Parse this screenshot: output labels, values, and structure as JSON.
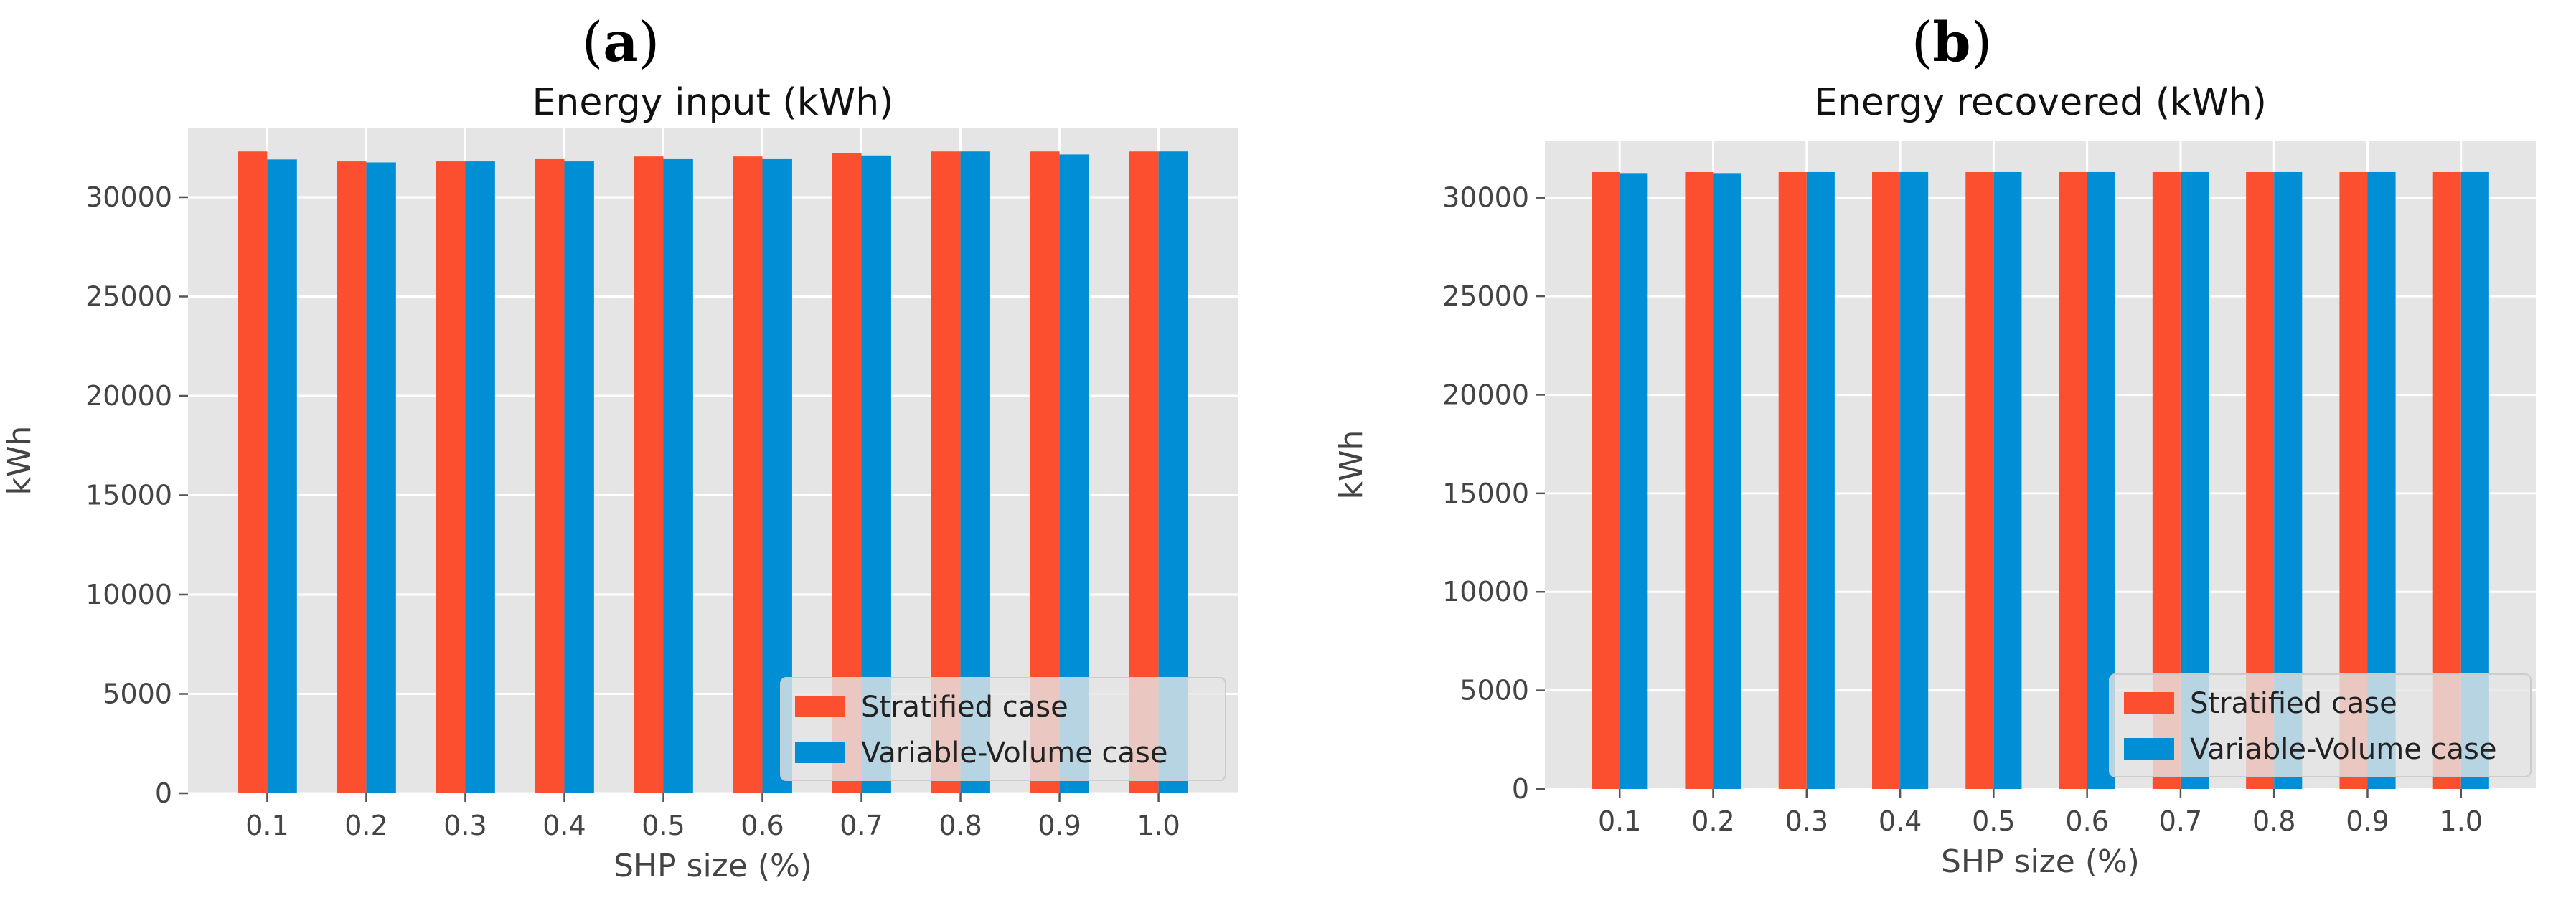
{
  "colors": {
    "stratified": "#fc4f30",
    "variable_volume": "#008fd5",
    "plot_background": "#e5e5e5",
    "grid": "#ffffff"
  },
  "chart_data": [
    {
      "panel_prefix": "(",
      "panel_letter": "a",
      "panel_suffix": ")",
      "type": "bar",
      "title": "Energy input (kWh)",
      "xlabel": "SHP size (%)",
      "ylabel": "kWh",
      "ylim": [
        0,
        33500
      ],
      "yticks": [
        0,
        5000,
        10000,
        15000,
        20000,
        25000,
        30000
      ],
      "ytick_labels": [
        "0",
        "5000",
        "10000",
        "15000",
        "20000",
        "25000",
        "30000"
      ],
      "categories": [
        "0.1",
        "0.2",
        "0.3",
        "0.4",
        "0.5",
        "0.6",
        "0.7",
        "0.8",
        "0.9",
        "1.0"
      ],
      "series": [
        {
          "name": "Stratified case",
          "color_key": "stratified",
          "values": [
            32300,
            31800,
            31800,
            31950,
            32050,
            32050,
            32200,
            32300,
            32300,
            32300
          ]
        },
        {
          "name": "Variable-Volume case",
          "color_key": "variable_volume",
          "values": [
            31900,
            31750,
            31800,
            31800,
            31950,
            31950,
            32100,
            32300,
            32150,
            32300
          ]
        }
      ],
      "legend": "lower-right",
      "grid": true
    },
    {
      "panel_prefix": "(",
      "panel_letter": "b",
      "panel_suffix": ")",
      "type": "bar",
      "title": "Energy recovered (kWh)",
      "xlabel": "SHP size (%)",
      "ylabel": "kWh",
      "ylim": [
        0,
        32900
      ],
      "yticks": [
        0,
        5000,
        10000,
        15000,
        20000,
        25000,
        30000
      ],
      "ytick_labels": [
        "0",
        "5000",
        "10000",
        "15000",
        "20000",
        "25000",
        "30000"
      ],
      "categories": [
        "0.1",
        "0.2",
        "0.3",
        "0.4",
        "0.5",
        "0.6",
        "0.7",
        "0.8",
        "0.9",
        "1.0"
      ],
      "series": [
        {
          "name": "Stratified case",
          "color_key": "stratified",
          "values": [
            31300,
            31300,
            31300,
            31300,
            31300,
            31300,
            31300,
            31300,
            31300,
            31300
          ]
        },
        {
          "name": "Variable-Volume case",
          "color_key": "variable_volume",
          "values": [
            31250,
            31250,
            31300,
            31300,
            31300,
            31300,
            31300,
            31300,
            31300,
            31300
          ]
        }
      ],
      "legend": "lower-right",
      "grid": true
    }
  ]
}
